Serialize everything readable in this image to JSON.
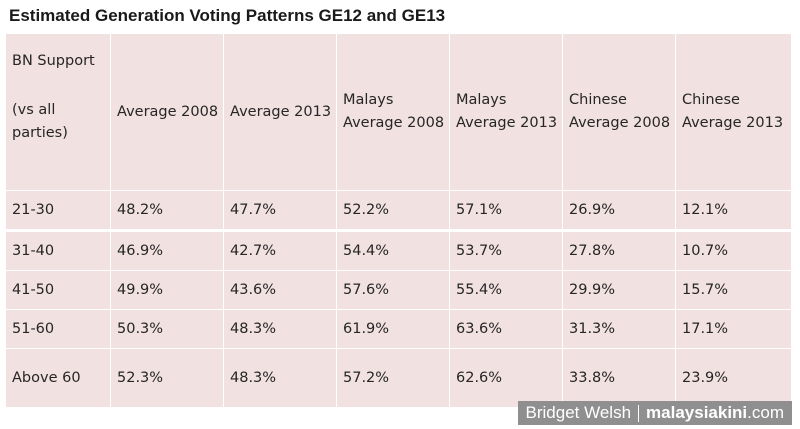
{
  "chart_data": {
    "type": "table",
    "title": "Estimated Generation Voting Patterns GE12 and GE13",
    "corner_header": {
      "line1": "BN Support",
      "line2": "(vs all parties)"
    },
    "columns": [
      "Average 2008",
      "Average 2013",
      "Malays Average 2008",
      "Malays Average 2013",
      "Chinese Average 2008",
      "Chinese Average 2013"
    ],
    "rows": [
      {
        "label": "21-30",
        "values": [
          "48.2%",
          "47.7%",
          "52.2%",
          "57.1%",
          "26.9%",
          "12.1%"
        ]
      },
      {
        "label": "31-40",
        "values": [
          "46.9%",
          "42.7%",
          "54.4%",
          "53.7%",
          "27.8%",
          "10.7%"
        ]
      },
      {
        "label": "41-50",
        "values": [
          "49.9%",
          "43.6%",
          "57.6%",
          "55.4%",
          "29.9%",
          "15.7%"
        ]
      },
      {
        "label": "51-60",
        "values": [
          "50.3%",
          "48.3%",
          "61.9%",
          "63.6%",
          "31.3%",
          "17.1%"
        ]
      },
      {
        "label": "Above 60",
        "values": [
          "52.3%",
          "48.3%",
          "57.2%",
          "62.6%",
          "33.8%",
          "23.9%"
        ]
      }
    ]
  },
  "credit": {
    "author": "Bridget Welsh",
    "brand": "malaysiakini",
    "brand_suffix": ".com"
  },
  "colors": {
    "cell_background": "#f2e1e1",
    "grid_lines": "#ffffff",
    "credit_background": "#8f8f8f"
  }
}
